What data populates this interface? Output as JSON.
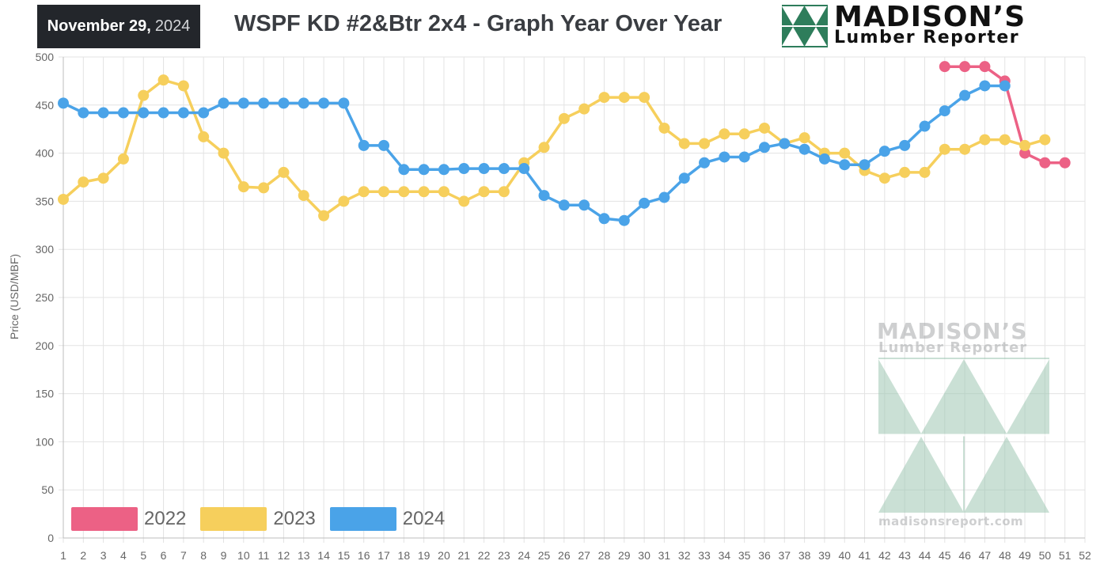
{
  "header": {
    "date_bold": "November 29,",
    "date_year": "2024",
    "title": "WSPF KD #2&Btr 2x4 - Graph Year Over Year"
  },
  "logo": {
    "word1": "MADISON’S",
    "word2": "Lumber Reporter"
  },
  "watermark": {
    "word1": "MADISON’S",
    "word2": "Lumber Reporter",
    "url": "madisonsreport.com"
  },
  "colors": {
    "s2022": "#ec6185",
    "s2023": "#f6cf5c",
    "s2024": "#4aa3e8",
    "grid": "#e3e3e3",
    "logo_green": "#2e7d5b"
  },
  "chart_data": {
    "type": "line",
    "title": "WSPF KD #2&Btr 2x4 - Graph Year Over Year",
    "xlabel": "",
    "ylabel": "Price  (USD/MBF)",
    "ylim": [
      0,
      500
    ],
    "yticks": [
      0,
      50,
      100,
      150,
      200,
      250,
      300,
      350,
      400,
      450,
      500
    ],
    "x": [
      1,
      2,
      3,
      4,
      5,
      6,
      7,
      8,
      9,
      10,
      11,
      12,
      13,
      14,
      15,
      16,
      17,
      18,
      19,
      20,
      21,
      22,
      23,
      24,
      25,
      26,
      27,
      28,
      29,
      30,
      31,
      32,
      33,
      34,
      35,
      36,
      37,
      38,
      39,
      40,
      41,
      42,
      43,
      44,
      45,
      46,
      47,
      48,
      49,
      50,
      51,
      52
    ],
    "grid": true,
    "legend_position": "bottom-left",
    "series": [
      {
        "name": "2022",
        "color": "#ec6185",
        "points": [
          [
            45,
            490
          ],
          [
            46,
            490
          ],
          [
            47,
            490
          ],
          [
            48,
            475
          ],
          [
            49,
            400
          ],
          [
            50,
            390
          ],
          [
            51,
            390
          ]
        ]
      },
      {
        "name": "2023",
        "color": "#f6cf5c",
        "points": [
          [
            1,
            352
          ],
          [
            2,
            370
          ],
          [
            3,
            374
          ],
          [
            4,
            394
          ],
          [
            5,
            460
          ],
          [
            6,
            476
          ],
          [
            7,
            470
          ],
          [
            8,
            417
          ],
          [
            9,
            400
          ],
          [
            10,
            365
          ],
          [
            11,
            364
          ],
          [
            12,
            380
          ],
          [
            13,
            356
          ],
          [
            14,
            335
          ],
          [
            15,
            350
          ],
          [
            16,
            360
          ],
          [
            17,
            360
          ],
          [
            18,
            360
          ],
          [
            19,
            360
          ],
          [
            20,
            360
          ],
          [
            21,
            350
          ],
          [
            22,
            360
          ],
          [
            23,
            360
          ],
          [
            24,
            390
          ],
          [
            25,
            406
          ],
          [
            26,
            436
          ],
          [
            27,
            446
          ],
          [
            28,
            458
          ],
          [
            29,
            458
          ],
          [
            30,
            458
          ],
          [
            31,
            426
          ],
          [
            32,
            410
          ],
          [
            33,
            410
          ],
          [
            34,
            420
          ],
          [
            35,
            420
          ],
          [
            36,
            426
          ],
          [
            37,
            410
          ],
          [
            38,
            416
          ],
          [
            39,
            400
          ],
          [
            40,
            400
          ],
          [
            41,
            382
          ],
          [
            42,
            374
          ],
          [
            43,
            380
          ],
          [
            44,
            380
          ],
          [
            45,
            404
          ],
          [
            46,
            404
          ],
          [
            47,
            414
          ],
          [
            48,
            414
          ],
          [
            49,
            408
          ],
          [
            50,
            414
          ]
        ]
      },
      {
        "name": "2024",
        "color": "#4aa3e8",
        "points": [
          [
            1,
            452
          ],
          [
            2,
            442
          ],
          [
            3,
            442
          ],
          [
            4,
            442
          ],
          [
            5,
            442
          ],
          [
            6,
            442
          ],
          [
            7,
            442
          ],
          [
            8,
            442
          ],
          [
            9,
            452
          ],
          [
            10,
            452
          ],
          [
            11,
            452
          ],
          [
            12,
            452
          ],
          [
            13,
            452
          ],
          [
            14,
            452
          ],
          [
            15,
            452
          ],
          [
            16,
            408
          ],
          [
            17,
            408
          ],
          [
            18,
            383
          ],
          [
            19,
            383
          ],
          [
            20,
            383
          ],
          [
            21,
            384
          ],
          [
            22,
            384
          ],
          [
            23,
            384
          ],
          [
            24,
            384
          ],
          [
            25,
            356
          ],
          [
            26,
            346
          ],
          [
            27,
            346
          ],
          [
            28,
            332
          ],
          [
            29,
            330
          ],
          [
            30,
            348
          ],
          [
            31,
            354
          ],
          [
            32,
            374
          ],
          [
            33,
            390
          ],
          [
            34,
            396
          ],
          [
            35,
            396
          ],
          [
            36,
            406
          ],
          [
            37,
            410
          ],
          [
            38,
            404
          ],
          [
            39,
            394
          ],
          [
            40,
            388
          ],
          [
            41,
            388
          ],
          [
            42,
            402
          ],
          [
            43,
            408
          ],
          [
            44,
            428
          ],
          [
            45,
            444
          ],
          [
            46,
            460
          ],
          [
            47,
            470
          ],
          [
            48,
            470
          ]
        ]
      }
    ]
  }
}
